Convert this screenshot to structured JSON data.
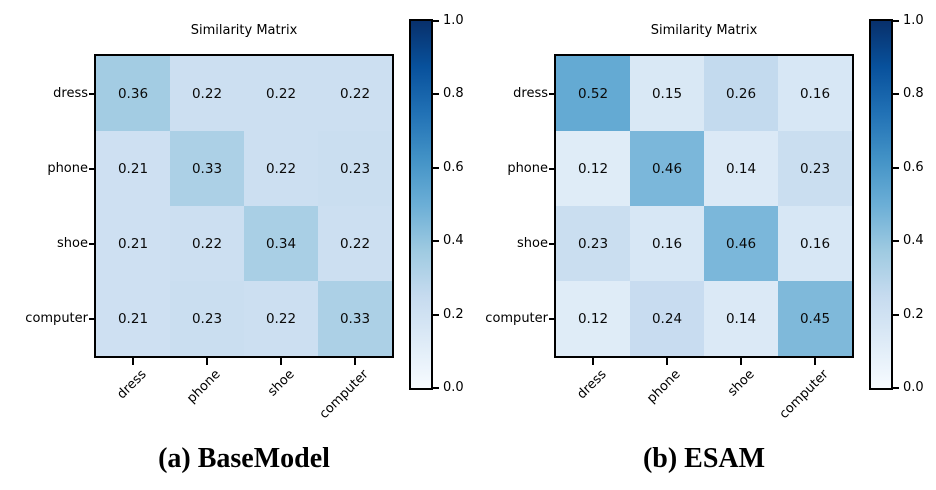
{
  "figure": {
    "background": "#ffffff",
    "colormap_name": "Blues",
    "colormap_stops": [
      "#f7fbff",
      "#deebf7",
      "#c6dbef",
      "#9ecae1",
      "#6baed6",
      "#4292c6",
      "#2171b5",
      "#08519c",
      "#08306b"
    ],
    "text_color": "#000000",
    "border_color": "#000000"
  },
  "chart_data": [
    {
      "type": "heatmap",
      "title": "Similarity Matrix",
      "caption": "(a) BaseModel",
      "x_categories": [
        "dress",
        "phone",
        "shoe",
        "computer"
      ],
      "y_categories": [
        "dress",
        "phone",
        "shoe",
        "computer"
      ],
      "matrix": [
        [
          0.36,
          0.22,
          0.22,
          0.22
        ],
        [
          0.21,
          0.33,
          0.22,
          0.23
        ],
        [
          0.21,
          0.22,
          0.34,
          0.22
        ],
        [
          0.21,
          0.23,
          0.22,
          0.33
        ]
      ],
      "colormap": "Blues",
      "colorbar_range": [
        0.0,
        1.0
      ],
      "colorbar_ticks": [
        1.0,
        0.8,
        0.6,
        0.4,
        0.2,
        0.0
      ],
      "value_decimals": 2,
      "grid": false,
      "legend": "colorbar-right"
    },
    {
      "type": "heatmap",
      "title": "Similarity Matrix",
      "caption": "(b) ESAM",
      "x_categories": [
        "dress",
        "phone",
        "shoe",
        "computer"
      ],
      "y_categories": [
        "dress",
        "phone",
        "shoe",
        "computer"
      ],
      "matrix": [
        [
          0.52,
          0.15,
          0.26,
          0.16
        ],
        [
          0.12,
          0.46,
          0.14,
          0.23
        ],
        [
          0.23,
          0.16,
          0.46,
          0.16
        ],
        [
          0.12,
          0.24,
          0.14,
          0.45
        ]
      ],
      "colormap": "Blues",
      "colorbar_range": [
        0.0,
        1.0
      ],
      "colorbar_ticks": [
        1.0,
        0.8,
        0.6,
        0.4,
        0.2,
        0.0
      ],
      "value_decimals": 2,
      "grid": false,
      "legend": "colorbar-right"
    }
  ]
}
